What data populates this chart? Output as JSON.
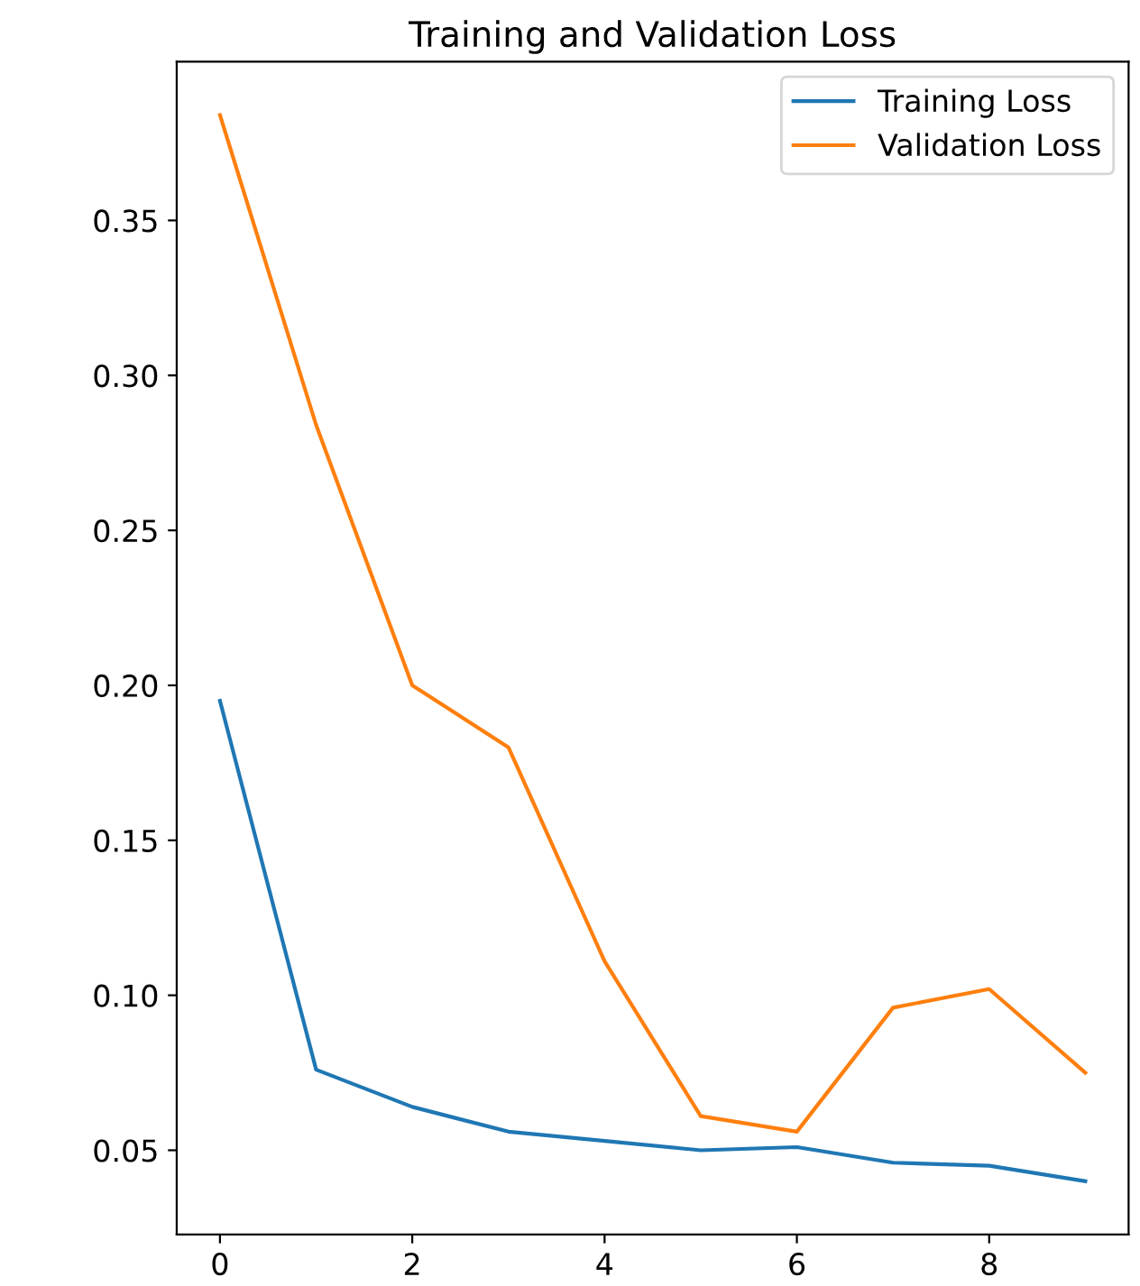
{
  "chart_data": {
    "type": "line",
    "title": "Training and Validation Loss",
    "x": [
      0,
      1,
      2,
      3,
      4,
      5,
      6,
      7,
      8,
      9
    ],
    "series": [
      {
        "name": "Training Loss",
        "color": "#1f77b4",
        "values": [
          0.195,
          0.076,
          0.064,
          0.056,
          0.053,
          0.05,
          0.051,
          0.046,
          0.045,
          0.04
        ]
      },
      {
        "name": "Validation Loss",
        "color": "#ff7f0e",
        "values": [
          0.384,
          0.284,
          0.2,
          0.18,
          0.111,
          0.061,
          0.056,
          0.096,
          0.102,
          0.075
        ]
      }
    ],
    "xlim": [
      -0.45,
      9.45
    ],
    "ylim": [
      0.0228,
      0.4012
    ],
    "xticks": [
      0,
      2,
      4,
      6,
      8
    ],
    "yticks": [
      {
        "value": 0.05,
        "label": "0.05"
      },
      {
        "value": 0.1,
        "label": "0.10"
      },
      {
        "value": 0.15,
        "label": "0.15"
      },
      {
        "value": 0.2,
        "label": "0.20"
      },
      {
        "value": 0.25,
        "label": "0.25"
      },
      {
        "value": 0.3,
        "label": "0.30"
      },
      {
        "value": 0.35,
        "label": "0.35"
      }
    ],
    "legend": "top right",
    "grid": false
  }
}
